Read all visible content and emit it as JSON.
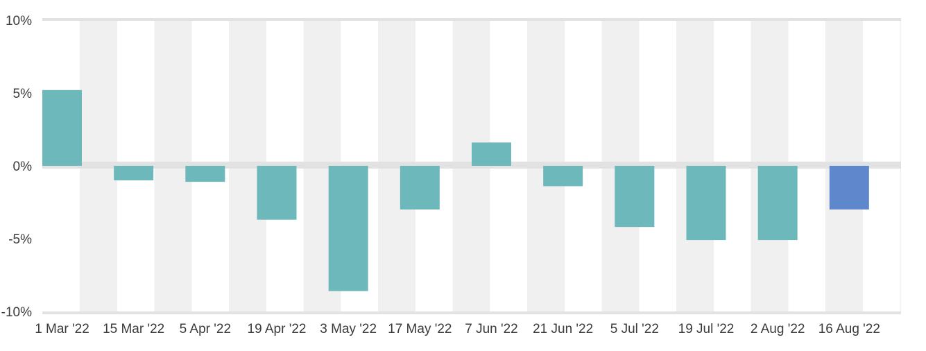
{
  "chart_data": {
    "type": "bar",
    "categories": [
      "1 Mar '22",
      "15 Mar '22",
      "5 Apr '22",
      "19 Apr '22",
      "3 May '22",
      "17 May '22",
      "7 Jun '22",
      "21 Jun '22",
      "5 Jul '22",
      "19 Jul '22",
      "2 Aug '22",
      "16 Aug '22"
    ],
    "values": [
      5.2,
      -1.0,
      -1.1,
      -3.7,
      -8.6,
      -3.0,
      1.6,
      -1.4,
      -4.2,
      -5.1,
      -5.1,
      -3.0
    ],
    "ylim": [
      -10,
      10
    ],
    "yticks": [
      10,
      5,
      0,
      -5,
      -10
    ],
    "ytick_labels": [
      "10%",
      "5%",
      "0%",
      "-5%",
      "-10%"
    ],
    "grid": "alternating vertical bands",
    "legend": "none",
    "colors": {
      "bar": "#6db8bb",
      "highlight_bar": "#5f88cc",
      "band": "#f0f0f0",
      "zero_line": "#e2e2e2"
    },
    "highlight_index": 11
  }
}
